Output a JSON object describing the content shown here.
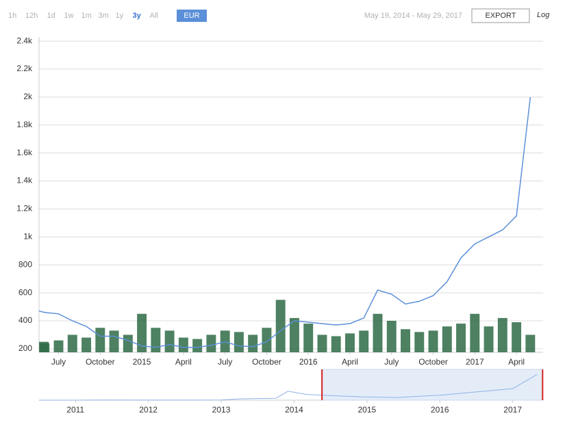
{
  "toolbar": {
    "ranges": [
      "1h",
      "12h",
      "1d",
      "1w",
      "1m",
      "3m",
      "1y",
      "3y",
      "All"
    ],
    "selected_range": 7,
    "currency": "EUR",
    "date_range": "May 19, 2014 - May 29, 2017",
    "export": "EXPORT",
    "log": "Log"
  },
  "chart_data": [
    {
      "type": "line",
      "x": [
        "2014-05",
        "2014-06",
        "2014-07",
        "2014-08",
        "2014-09",
        "2014-10",
        "2014-11",
        "2014-12",
        "2015-01",
        "2015-02",
        "2015-03",
        "2015-04",
        "2015-05",
        "2015-06",
        "2015-07",
        "2015-08",
        "2015-09",
        "2015-10",
        "2015-11",
        "2015-12",
        "2016-01",
        "2016-02",
        "2016-03",
        "2016-04",
        "2016-05",
        "2016-06",
        "2016-07",
        "2016-08",
        "2016-09",
        "2016-10",
        "2016-11",
        "2016-12",
        "2017-01",
        "2017-02",
        "2017-03",
        "2017-04",
        "2017-05"
      ],
      "series": [
        {
          "type": "bar",
          "color": "#2e6b45",
          "values": [
            250,
            240,
            260,
            300,
            280,
            350,
            330,
            300,
            450,
            350,
            330,
            280,
            270,
            300,
            330,
            320,
            300,
            350,
            550,
            420,
            380,
            300,
            290,
            310,
            330,
            450,
            400,
            340,
            320,
            330,
            360,
            380,
            450,
            360,
            420,
            390,
            300
          ]
        },
        {
          "type": "line",
          "color": "#5b8fd9",
          "values": [
            470,
            460,
            450,
            400,
            360,
            290,
            290,
            260,
            220,
            210,
            230,
            210,
            210,
            225,
            250,
            220,
            215,
            250,
            330,
            400,
            390,
            380,
            370,
            380,
            420,
            620,
            590,
            520,
            540,
            580,
            680,
            850,
            950,
            1000,
            1050,
            1150,
            2000
          ]
        }
      ],
      "xlim": [
        "2014-05-19",
        "2017-05-29"
      ],
      "xticks": [
        {
          "value": "2014-07",
          "label": "July"
        },
        {
          "value": "2014-10",
          "label": "October"
        },
        {
          "value": "2015-01",
          "label": "2015"
        },
        {
          "value": "2015-04",
          "label": "April"
        },
        {
          "value": "2015-07",
          "label": "July"
        },
        {
          "value": "2015-10",
          "label": "October"
        },
        {
          "value": "2016-01",
          "label": "2016"
        },
        {
          "value": "2016-04",
          "label": "April"
        },
        {
          "value": "2016-07",
          "label": "July"
        },
        {
          "value": "2016-10",
          "label": "October"
        },
        {
          "value": "2017-01",
          "label": "2017"
        },
        {
          "value": "2017-04",
          "label": "April"
        }
      ],
      "ylim": [
        175,
        2430
      ],
      "yticks": [
        200,
        400,
        600,
        800,
        {
          "value": 1000,
          "label": "1k"
        },
        {
          "value": 1200,
          "label": "1.2k"
        },
        {
          "value": 1400,
          "label": "1.4k"
        },
        {
          "value": 1600,
          "label": "1.6k"
        },
        {
          "value": 1800,
          "label": "1.8k"
        },
        {
          "value": 2000,
          "label": "2k"
        },
        {
          "value": 2200,
          "label": "2.2k"
        },
        {
          "value": 2400,
          "label": "2.4k"
        }
      ],
      "grid": true
    },
    {
      "type": "area",
      "color": "#8fb1e6",
      "x": [
        "2010-07",
        "2011-01",
        "2011-06",
        "2012-01",
        "2012-06",
        "2013-01",
        "2013-04",
        "2013-10",
        "2013-12",
        "2014-03",
        "2014-05",
        "2014-12",
        "2015-06",
        "2016-01",
        "2016-06",
        "2017-01",
        "2017-05"
      ],
      "values": [
        0.05,
        0.3,
        15,
        5,
        5,
        10,
        100,
        150,
        700,
        450,
        400,
        260,
        210,
        390,
        600,
        900,
        2000
      ],
      "xlim": [
        "2010-07",
        "2017-06"
      ],
      "ylim": [
        0,
        2400
      ],
      "xticks": [
        {
          "value": "2011-01",
          "label": "2011"
        },
        {
          "value": "2012-01",
          "label": "2012"
        },
        {
          "value": "2013-01",
          "label": "2013"
        },
        {
          "value": "2014-01",
          "label": "2014"
        },
        {
          "value": "2015-01",
          "label": "2015"
        },
        {
          "value": "2016-01",
          "label": "2016"
        },
        {
          "value": "2017-01",
          "label": "2017"
        }
      ]
    }
  ]
}
